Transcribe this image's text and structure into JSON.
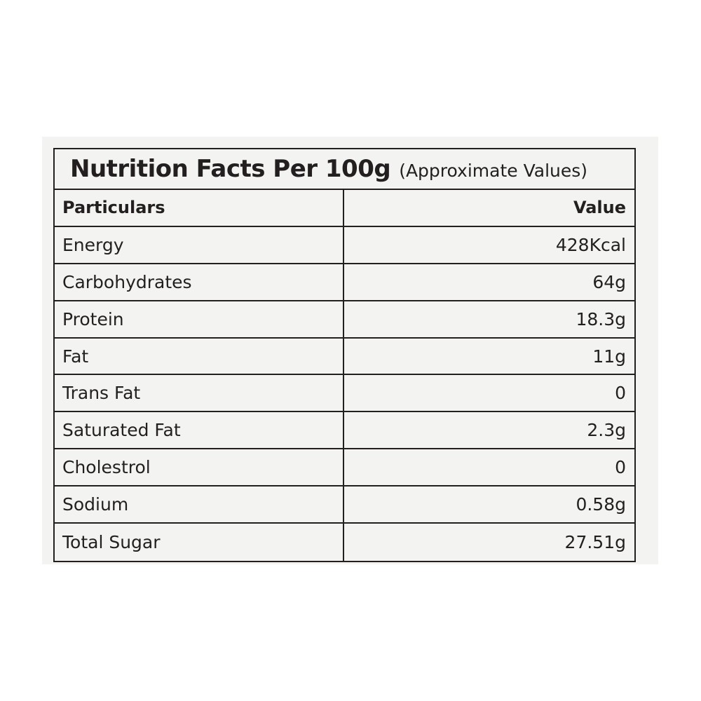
{
  "table": {
    "title": "Nutrition Facts Per 100g",
    "subtitle": "(Approximate Values)",
    "header": {
      "particulars": "Particulars",
      "value": "Value"
    },
    "rows": [
      {
        "name": "Energy",
        "value": "428Kcal"
      },
      {
        "name": "Carbohydrates",
        "value": "64g"
      },
      {
        "name": "Protein",
        "value": "18.3g"
      },
      {
        "name": "Fat",
        "value": "11g"
      },
      {
        "name": "Trans Fat",
        "value": "0"
      },
      {
        "name": "Saturated Fat",
        "value": "2.3g"
      },
      {
        "name": "Cholestrol",
        "value": "0"
      },
      {
        "name": "Sodium",
        "value": "0.58g"
      },
      {
        "name": "Total Sugar",
        "value": "27.51g"
      }
    ]
  }
}
